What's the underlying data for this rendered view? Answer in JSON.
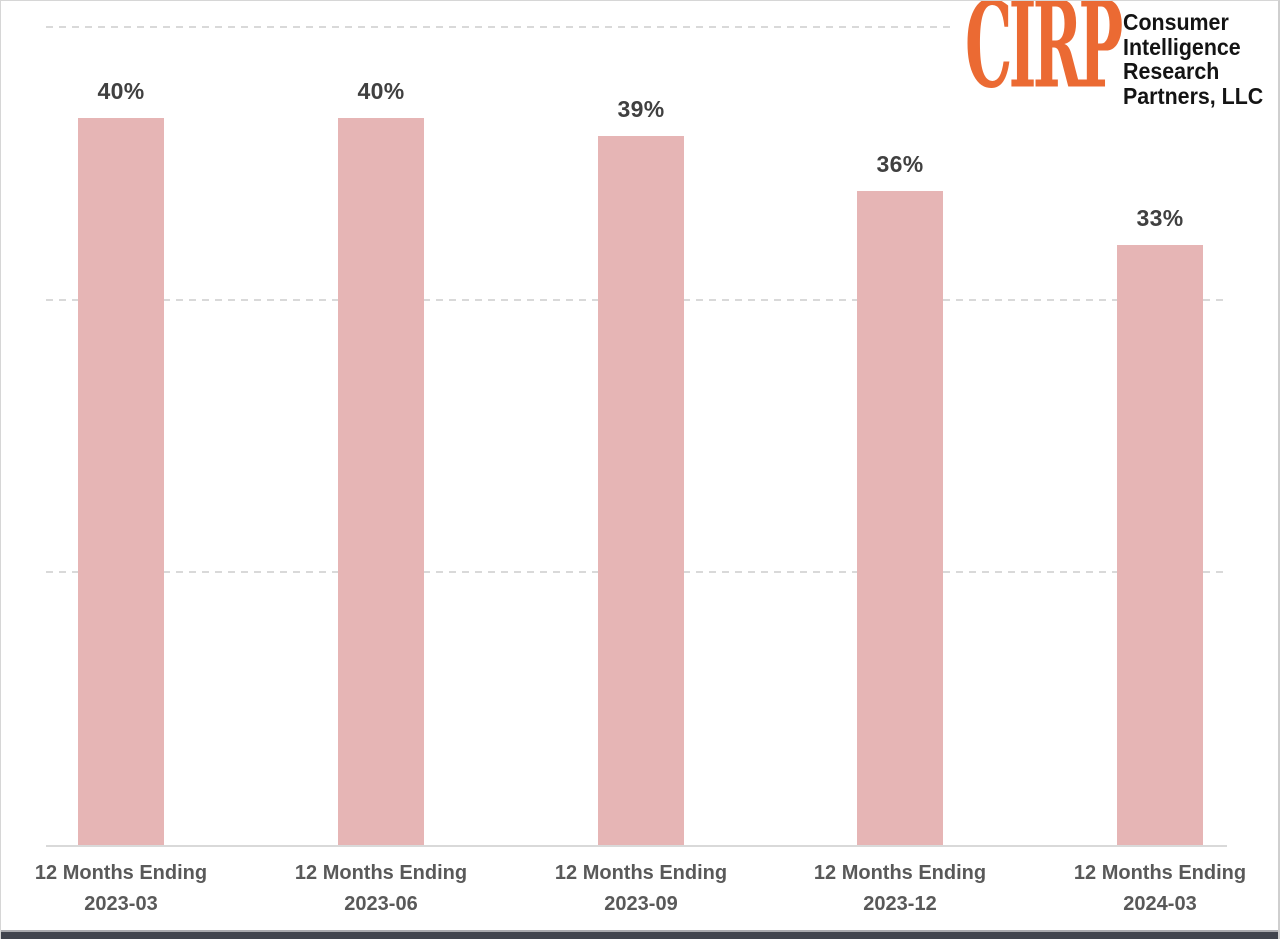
{
  "logo": {
    "brand": "CIRP",
    "brand_color": "#EB6A33",
    "subtitle_lines": [
      "Consumer",
      "Intelligence",
      "Research",
      "Partners, LLC"
    ]
  },
  "chart_data": {
    "type": "bar",
    "title": "",
    "xlabel": "",
    "ylabel": "",
    "category_prefix": "12 Months Ending",
    "categories": [
      "2023-03",
      "2023-06",
      "2023-09",
      "2023-12",
      "2024-03"
    ],
    "values": [
      40,
      40,
      39,
      36,
      33
    ],
    "value_labels": [
      "40%",
      "40%",
      "39%",
      "36%",
      "33%"
    ],
    "unit": "%",
    "ylim": [
      0,
      45
    ],
    "gridlines_pct": [
      15,
      30,
      45
    ],
    "grid_style": "dashed",
    "legend_position": "none",
    "colors": {
      "bar_fill": "#E6B5B5",
      "value_label": "#404040",
      "axis_label": "#595959",
      "gridline": "#D9D9D9",
      "axis_line": "#D9D9D9",
      "bottom_edge": "#41444D"
    }
  }
}
